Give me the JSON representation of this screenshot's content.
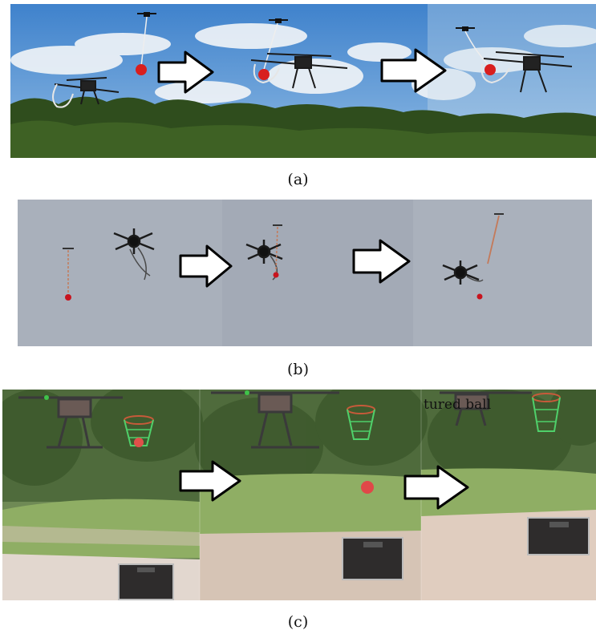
{
  "panels": [
    {
      "caption": "(a)",
      "scene": "sky-trees"
    },
    {
      "caption": "(b)",
      "scene": "grey-sky"
    },
    {
      "caption": "(c)",
      "scene": "field-basket"
    }
  ],
  "overlay_text": "tured ball",
  "colors": {
    "ball": "#d81e1e",
    "arrow_stroke": "#000000",
    "arrow_fill": "#ffffff",
    "sky_a": "#4f8fd0",
    "trees": "#2d4a1c",
    "sky_b": "#a6adb8",
    "grass": "#7f9a55",
    "ground": "#d6c8bd",
    "net": "#4fd06a"
  }
}
